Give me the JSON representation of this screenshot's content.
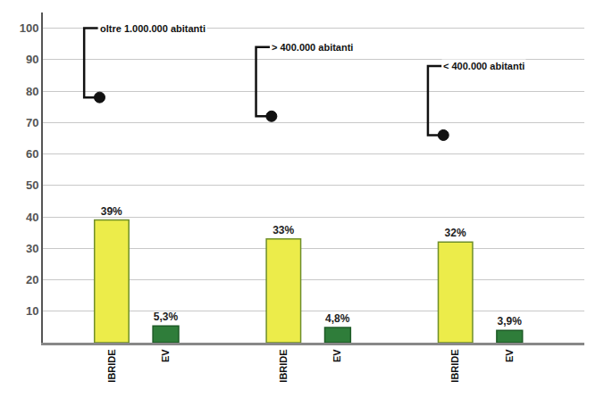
{
  "chart_data": {
    "type": "bar",
    "categories": [
      "oltre 1.000.000 abitanti",
      "> 400.000 abitanti",
      "< 400.000 abitanti"
    ],
    "series": [
      {
        "name": "IBRIDE",
        "color": "#ecec4a",
        "values": [
          39,
          33,
          32
        ],
        "value_labels": [
          "39%",
          "33%",
          "32%"
        ]
      },
      {
        "name": "EV",
        "color": "#2f7d3a",
        "values": [
          5.3,
          4.8,
          3.9
        ],
        "value_labels": [
          "5,3%",
          "4,8%",
          "3,9%"
        ]
      }
    ],
    "ylim": [
      0,
      105
    ],
    "yticks": [
      10,
      20,
      30,
      40,
      50,
      60,
      70,
      80,
      90,
      100
    ],
    "grid": true,
    "data_labels": true
  }
}
